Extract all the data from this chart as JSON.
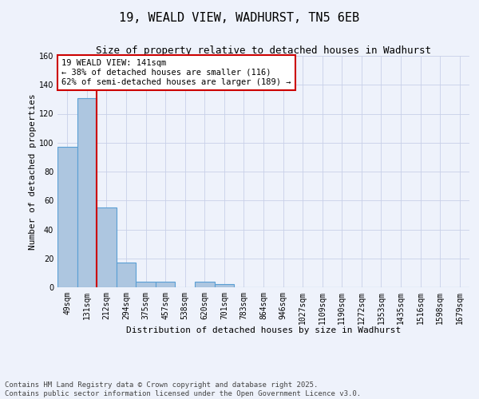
{
  "title_line1": "19, WEALD VIEW, WADHURST, TN5 6EB",
  "title_line2": "Size of property relative to detached houses in Wadhurst",
  "xlabel": "Distribution of detached houses by size in Wadhurst",
  "ylabel": "Number of detached properties",
  "categories": [
    "49sqm",
    "131sqm",
    "212sqm",
    "294sqm",
    "375sqm",
    "457sqm",
    "538sqm",
    "620sqm",
    "701sqm",
    "783sqm",
    "864sqm",
    "946sqm",
    "1027sqm",
    "1109sqm",
    "1190sqm",
    "1272sqm",
    "1353sqm",
    "1435sqm",
    "1516sqm",
    "1598sqm",
    "1679sqm"
  ],
  "values": [
    97,
    131,
    55,
    17,
    4,
    4,
    0,
    4,
    2,
    0,
    0,
    0,
    0,
    0,
    0,
    0,
    0,
    0,
    0,
    0,
    0
  ],
  "bar_color": "#adc6e0",
  "bar_edge_color": "#5a9fd4",
  "background_color": "#eef2fb",
  "grid_color": "#c8d0e8",
  "vline_x": 1.5,
  "vline_color": "#cc0000",
  "annotation_text": "19 WEALD VIEW: 141sqm\n← 38% of detached houses are smaller (116)\n62% of semi-detached houses are larger (189) →",
  "annotation_box_color": "#cc0000",
  "ylim": [
    0,
    160
  ],
  "yticks": [
    0,
    20,
    40,
    60,
    80,
    100,
    120,
    140,
    160
  ],
  "footer_line1": "Contains HM Land Registry data © Crown copyright and database right 2025.",
  "footer_line2": "Contains public sector information licensed under the Open Government Licence v3.0.",
  "title_fontsize": 11,
  "subtitle_fontsize": 9,
  "axis_label_fontsize": 8,
  "tick_fontsize": 7,
  "annotation_fontsize": 7.5,
  "footer_fontsize": 6.5
}
